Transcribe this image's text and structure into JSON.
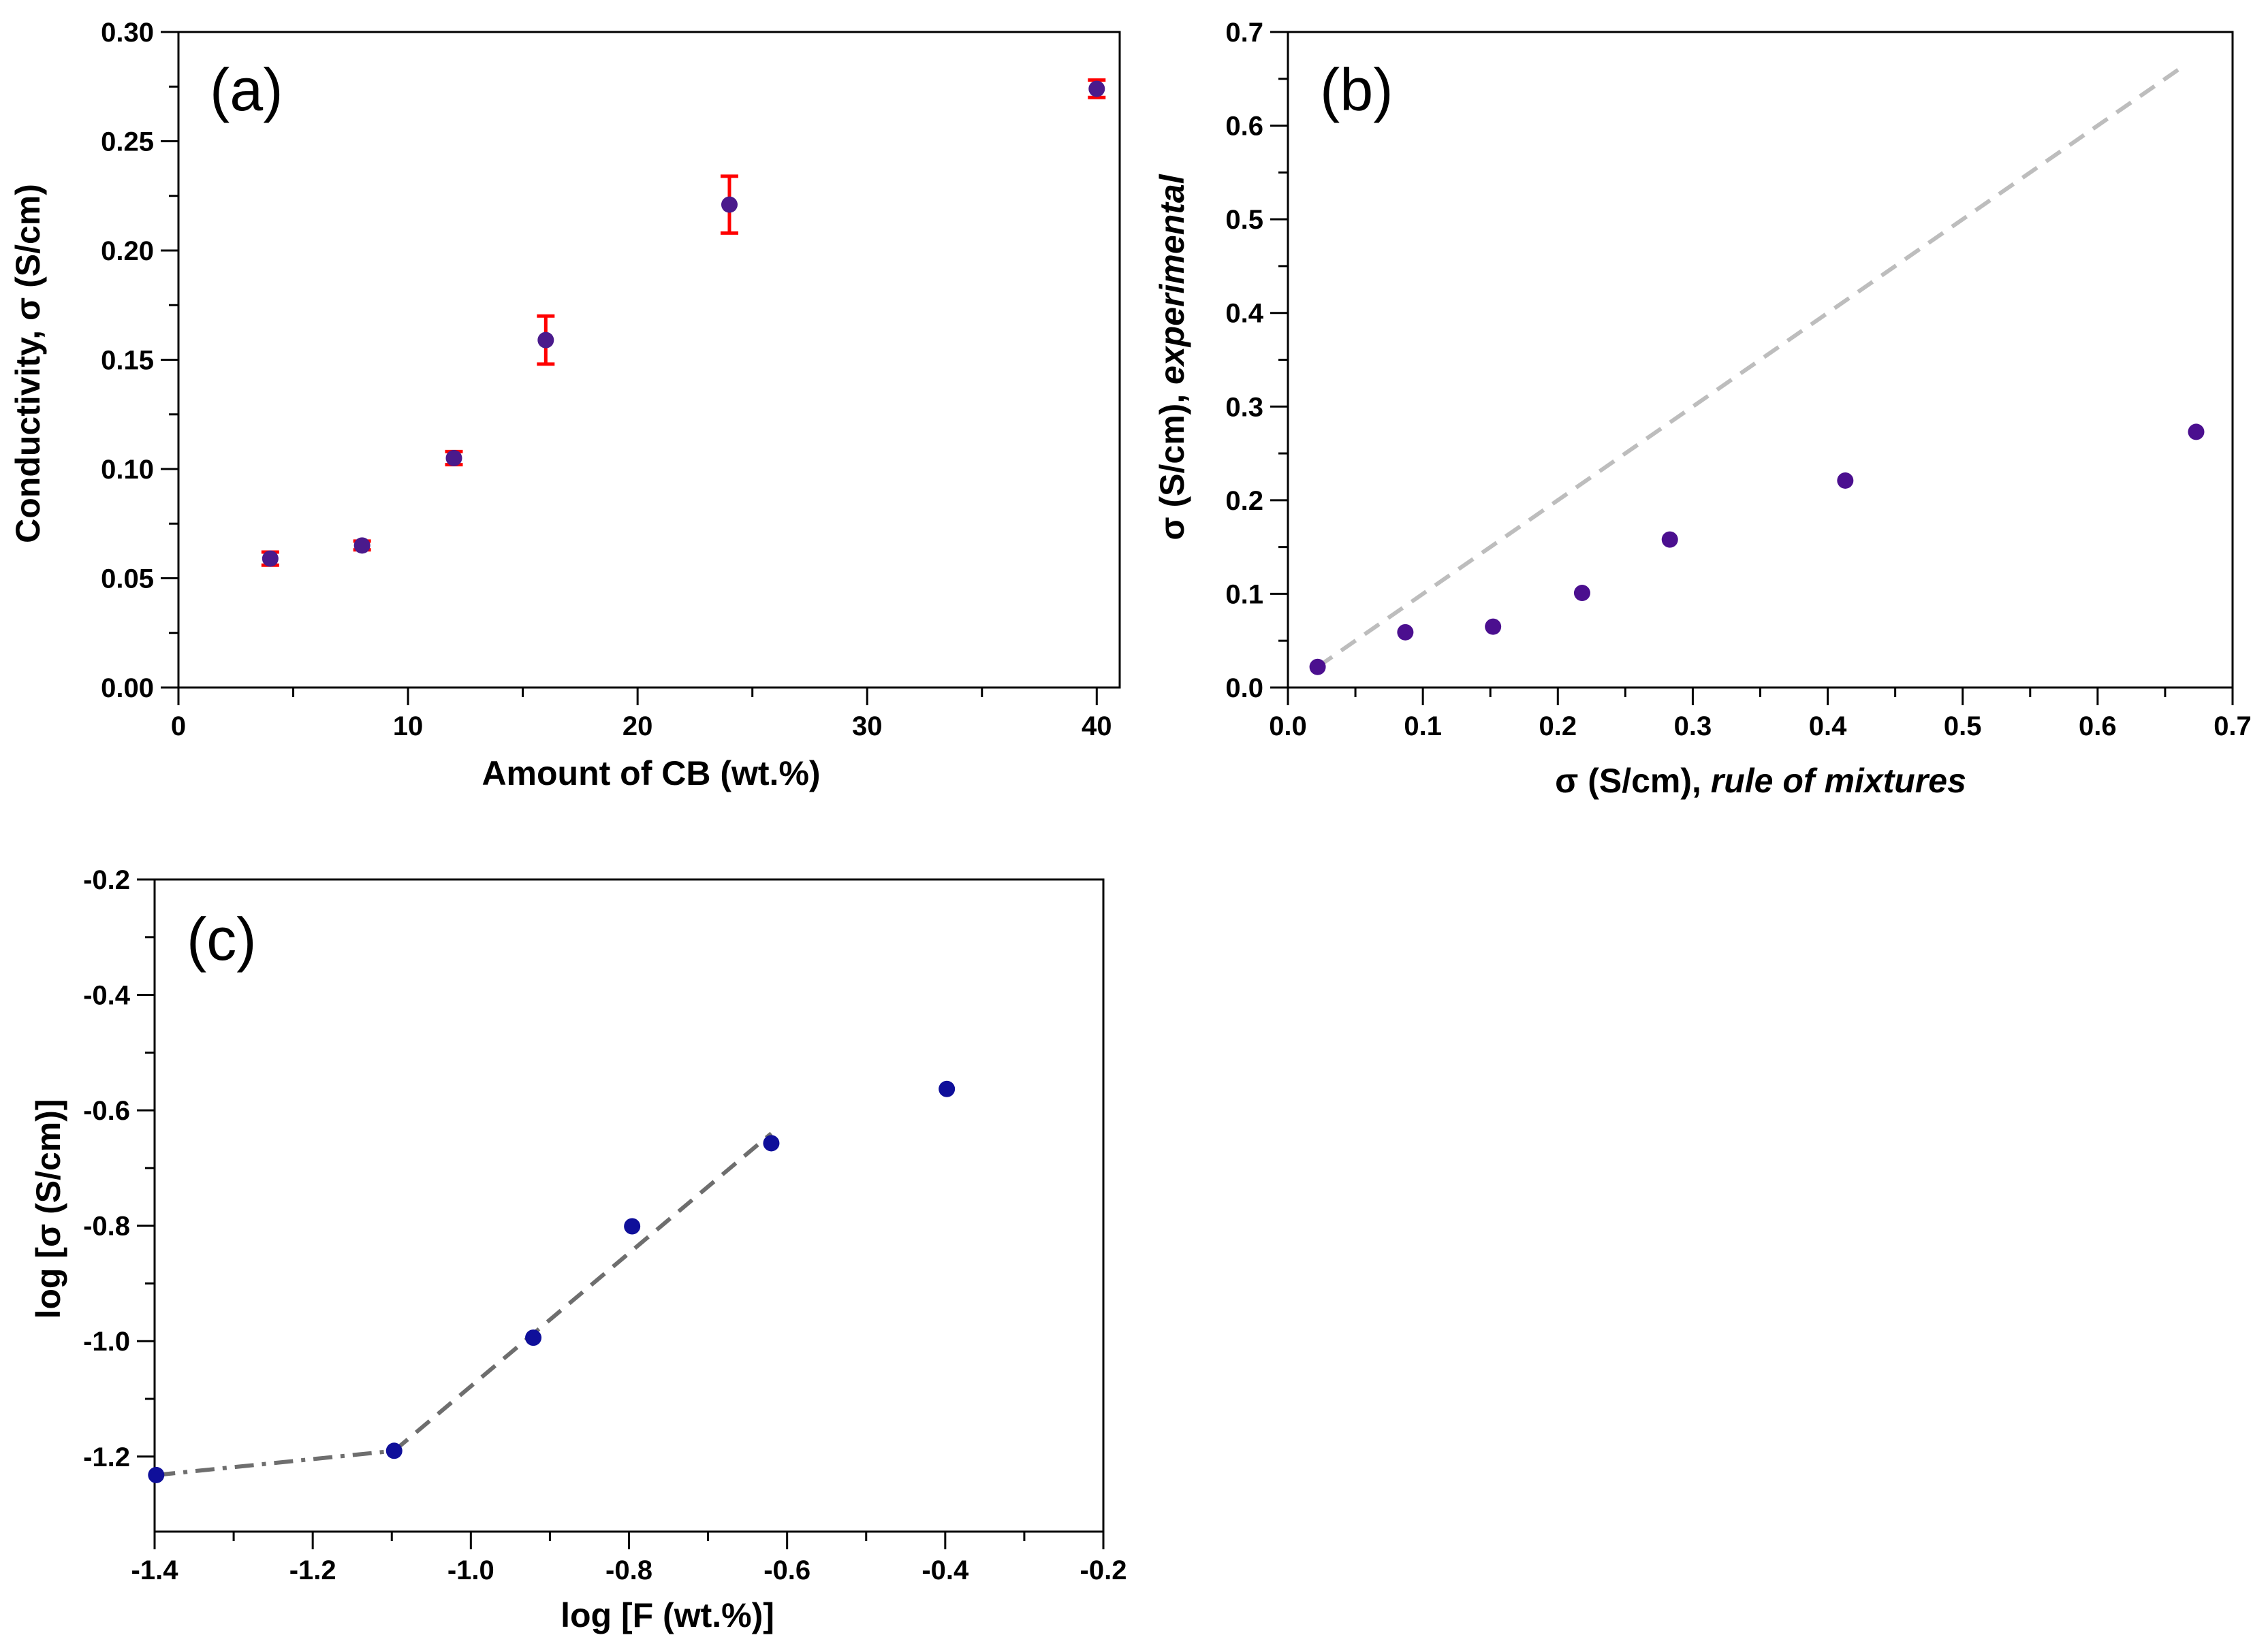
{
  "colors": {
    "axis": "#000000",
    "marker_a": "#4a1a8c",
    "errorbar_a": "#ff0000",
    "marker_b": "#4b0f8f",
    "marker_c": "#0f0f9a",
    "dashed_b": "#bdbdbd",
    "dashed_c": "#6e6e6e"
  },
  "chart_data": [
    {
      "id": "a",
      "type": "scatter",
      "panel_label": "(a)",
      "xlabel": "Amount of CB (wt.%)",
      "ylabel": "Conductivity, σ (S/cm)",
      "xlim": [
        0,
        41
      ],
      "ylim": [
        0,
        0.3
      ],
      "xticks": [
        0,
        10,
        20,
        30,
        40
      ],
      "xtick_labels": [
        "0",
        "10",
        "20",
        "30",
        "40"
      ],
      "yticks": [
        0,
        0.05,
        0.1,
        0.15,
        0.2,
        0.25,
        0.3
      ],
      "ytick_labels": [
        "0.00",
        "0.05",
        "0.10",
        "0.15",
        "0.20",
        "0.25",
        "0.30"
      ],
      "grid": false,
      "series": [
        {
          "marker_color": "#4a1a8c",
          "points": [
            {
              "x": 4,
              "y": 0.059,
              "err": 0.003
            },
            {
              "x": 8,
              "y": 0.065,
              "err": 0.002
            },
            {
              "x": 12,
              "y": 0.105,
              "err": 0.003
            },
            {
              "x": 16,
              "y": 0.159,
              "err": 0.011
            },
            {
              "x": 24,
              "y": 0.221,
              "err": 0.013
            },
            {
              "x": 40,
              "y": 0.274,
              "err": 0.004
            }
          ]
        }
      ]
    },
    {
      "id": "b",
      "type": "scatter",
      "panel_label": "(b)",
      "xlabel_main": "σ (S/cm), ",
      "xlabel_italic": "rule of mixtures",
      "ylabel_main": "σ (S/cm), ",
      "ylabel_italic": "experimental",
      "xlim": [
        0,
        0.7
      ],
      "ylim": [
        0,
        0.7
      ],
      "xticks": [
        0,
        0.1,
        0.2,
        0.3,
        0.4,
        0.5,
        0.6,
        0.7
      ],
      "xtick_labels": [
        "0.0",
        "0.1",
        "0.2",
        "0.3",
        "0.4",
        "0.5",
        "0.6",
        "0.7"
      ],
      "yticks": [
        0,
        0.1,
        0.2,
        0.3,
        0.4,
        0.5,
        0.6,
        0.7
      ],
      "ytick_labels": [
        "0.0",
        "0.1",
        "0.2",
        "0.3",
        "0.4",
        "0.5",
        "0.6",
        "0.7"
      ],
      "grid": false,
      "series": [
        {
          "marker_color": "#4b0f8f",
          "points": [
            {
              "x": 0.022,
              "y": 0.022
            },
            {
              "x": 0.087,
              "y": 0.059
            },
            {
              "x": 0.152,
              "y": 0.065
            },
            {
              "x": 0.218,
              "y": 0.101
            },
            {
              "x": 0.283,
              "y": 0.158
            },
            {
              "x": 0.413,
              "y": 0.221
            },
            {
              "x": 0.673,
              "y": 0.273
            }
          ]
        }
      ],
      "lines": [
        {
          "style": "dashed",
          "color": "#bdbdbd",
          "points": [
            [
              0.022,
              0.022
            ],
            [
              0.665,
              0.665
            ]
          ]
        }
      ]
    },
    {
      "id": "c",
      "type": "scatter",
      "panel_label": "(c)",
      "xlabel": "log [F (wt.%)]",
      "ylabel": "log [σ (S/cm)]",
      "xlim": [
        -1.4,
        -0.2
      ],
      "ylim": [
        -1.33,
        -0.2
      ],
      "xticks": [
        -1.4,
        -1.2,
        -1.0,
        -0.8,
        -0.6,
        -0.4,
        -0.2
      ],
      "xtick_labels": [
        "-1.4",
        "-1.2",
        "-1.0",
        "-0.8",
        "-0.6",
        "-0.4",
        "-0.2"
      ],
      "yticks": [
        -1.2,
        -1.0,
        -0.8,
        -0.6,
        -0.4,
        -0.2
      ],
      "ytick_labels": [
        "-1.2",
        "-1.0",
        "-0.8",
        "-0.6",
        "-0.4",
        "-0.2"
      ],
      "grid": false,
      "series": [
        {
          "marker_color": "#0f0f9a",
          "points": [
            {
              "x": -1.398,
              "y": -1.232
            },
            {
              "x": -1.097,
              "y": -1.19
            },
            {
              "x": -0.921,
              "y": -0.994
            },
            {
              "x": -0.796,
              "y": -0.801
            },
            {
              "x": -0.62,
              "y": -0.657
            },
            {
              "x": -0.398,
              "y": -0.563
            }
          ]
        }
      ],
      "lines": [
        {
          "style": "dashdot",
          "color": "#6e6e6e",
          "points": [
            [
              -1.398,
              -1.232
            ],
            [
              -1.097,
              -1.19
            ]
          ]
        },
        {
          "style": "dashed",
          "color": "#6e6e6e",
          "points": [
            [
              -1.097,
              -1.19
            ],
            [
              -0.62,
              -0.64
            ]
          ]
        }
      ]
    }
  ]
}
